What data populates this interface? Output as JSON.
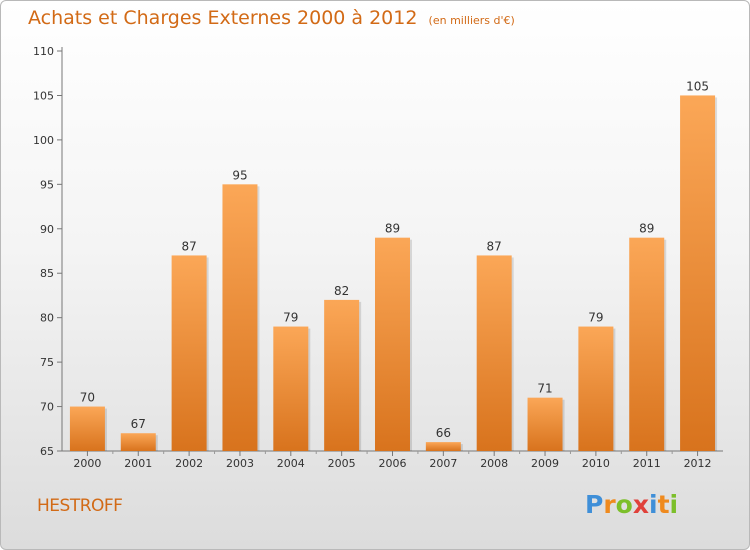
{
  "header": {
    "title": "Achats et Charges Externes 2000 à 2012",
    "subtitle": "(en milliers d'€)"
  },
  "commune": "HESTROFF",
  "logo": {
    "letters": [
      "P",
      "r",
      "o",
      "x",
      "i",
      "t",
      "i"
    ],
    "colors": [
      "#3f8fd8",
      "#ef8a1e",
      "#7cbf2a",
      "#e0413a",
      "#3f8fd8",
      "#ef8a1e",
      "#7cbf2a"
    ]
  },
  "colors": {
    "accent": "#d26a16",
    "bar_light": "#fba757",
    "bar_dark": "#d8731d"
  },
  "chart_data": {
    "type": "bar",
    "categories": [
      "2000",
      "2001",
      "2002",
      "2003",
      "2004",
      "2005",
      "2006",
      "2007",
      "2008",
      "2009",
      "2010",
      "2011",
      "2012"
    ],
    "values": [
      70,
      67,
      87,
      95,
      79,
      82,
      89,
      66,
      87,
      71,
      79,
      89,
      105
    ],
    "title": "Achats et Charges Externes 2000 à 2012",
    "subtitle": "(en milliers d'€)",
    "xlabel": "",
    "ylabel": "",
    "ylim": [
      65,
      110
    ],
    "yticks": [
      65,
      70,
      75,
      80,
      85,
      90,
      95,
      100,
      105,
      110
    ],
    "grid": false,
    "legend": "none"
  }
}
